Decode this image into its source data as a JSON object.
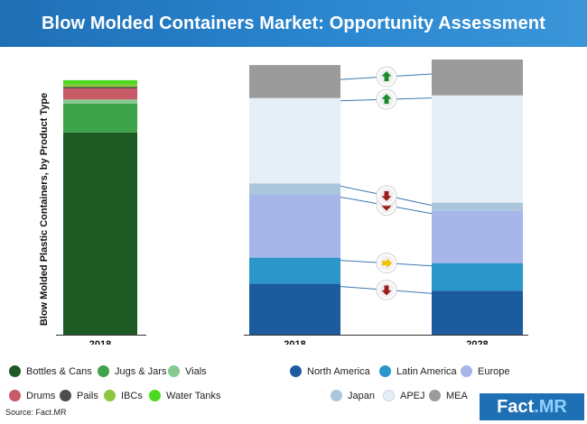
{
  "title": "Blow Molded Containers Market: Opportunity Assessment",
  "source": "Source: Fact.MR",
  "logo": {
    "part1": "Fact",
    "part2": ".MR"
  },
  "chart_data": [
    {
      "type": "bar",
      "stacked": true,
      "ylabel": "Blow Molded Plastic Containers, by Product Type",
      "categories": [
        "2018"
      ],
      "series": [
        {
          "name": "Bottles & Cans",
          "color": "#1e5a23",
          "values": [
            73.5
          ]
        },
        {
          "name": "Jugs & Jars",
          "color": "#3ea34a",
          "values": [
            10.5
          ]
        },
        {
          "name": "Vials",
          "color": "#85c98e",
          "values": [
            1.5
          ]
        },
        {
          "name": "Drums",
          "color": "#c85a68",
          "values": [
            4
          ]
        },
        {
          "name": "Pails",
          "color": "#4d4d4d",
          "values": [
            0.5
          ]
        },
        {
          "name": "IBCs",
          "color": "#8cc63f",
          "values": [
            1
          ]
        },
        {
          "name": "Water Tanks",
          "color": "#4cd91e",
          "values": [
            1.5
          ]
        }
      ],
      "ylim": [
        0,
        100
      ]
    },
    {
      "type": "bar",
      "stacked": true,
      "categories": [
        "2018",
        "2028"
      ],
      "series": [
        {
          "name": "North America",
          "color": "#1c5c9e",
          "values": [
            18.5,
            16
          ],
          "trend": "down"
        },
        {
          "name": "Latin America",
          "color": "#2a96c9",
          "values": [
            9.5,
            10
          ],
          "trend": "neutral"
        },
        {
          "name": "Europe",
          "color": "#a6b6e8",
          "values": [
            23,
            19
          ],
          "trend": "down"
        },
        {
          "name": "Japan",
          "color": "#aac6dc",
          "values": [
            4,
            3
          ],
          "trend": "down"
        },
        {
          "name": "APEJ",
          "color": "#e6eef8",
          "values": [
            31,
            39
          ],
          "trend": "up"
        },
        {
          "name": "MEA",
          "color": "#9b9b9b",
          "values": [
            12,
            13
          ],
          "trend": "up"
        }
      ],
      "ylim": [
        0,
        100
      ]
    }
  ],
  "legends": {
    "product_row1": [
      {
        "name": "Bottles & Cans",
        "color": "#1e5a23"
      },
      {
        "name": "Jugs & Jars",
        "color": "#3ea34a"
      },
      {
        "name": "Vials",
        "color": "#85c98e"
      }
    ],
    "product_row2": [
      {
        "name": "Drums",
        "color": "#c85a68"
      },
      {
        "name": "Pails",
        "color": "#4d4d4d"
      },
      {
        "name": "IBCs",
        "color": "#8cc63f"
      },
      {
        "name": "Water Tanks",
        "color": "#4cd91e"
      }
    ],
    "region_row1": [
      {
        "name": "North America",
        "color": "#1c5c9e"
      },
      {
        "name": "Latin America",
        "color": "#2a96c9"
      },
      {
        "name": "Europe",
        "color": "#a6b6e8"
      }
    ],
    "region_row2": [
      {
        "name": "Japan",
        "color": "#aac6dc"
      },
      {
        "name": "APEJ",
        "color": "#e6eef8"
      },
      {
        "name": "MEA",
        "color": "#9b9b9b"
      }
    ]
  },
  "trend_colors": {
    "up": "#1a8a2f",
    "down": "#a01c1c",
    "neutral": "#f2c200"
  }
}
